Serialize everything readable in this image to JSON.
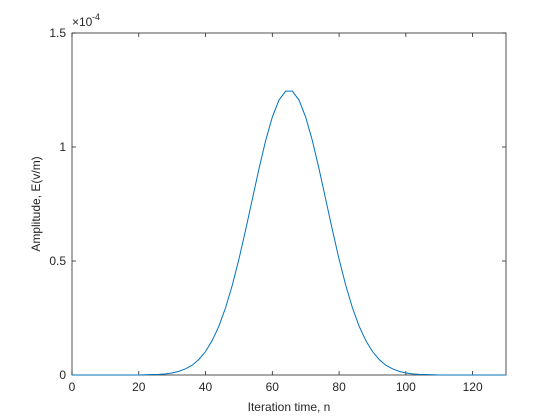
{
  "chart_data": {
    "type": "line",
    "x_label": "Iteration time, n",
    "y_label": "Amplitude, E(v/m)",
    "y_multiplier": "×10",
    "y_exponent": "-4",
    "x": [
      0,
      2,
      4,
      6,
      8,
      10,
      12,
      14,
      16,
      18,
      20,
      22,
      24,
      26,
      28,
      30,
      32,
      34,
      36,
      38,
      40,
      42,
      44,
      46,
      48,
      50,
      52,
      54,
      56,
      58,
      60,
      62,
      64,
      66,
      68,
      70,
      72,
      74,
      76,
      78,
      80,
      82,
      84,
      86,
      88,
      90,
      92,
      94,
      96,
      98,
      100,
      102,
      104,
      106,
      108,
      110,
      112,
      114,
      116,
      118,
      120,
      122,
      124,
      126,
      128,
      130
    ],
    "series": [
      {
        "color": "#0072bd",
        "values": [
          0,
          0,
          0,
          0,
          0,
          0,
          0,
          0,
          0,
          0,
          0,
          0.001,
          0.002,
          0.003,
          0.005,
          0.009,
          0.016,
          0.027,
          0.043,
          0.068,
          0.103,
          0.151,
          0.214,
          0.295,
          0.393,
          0.508,
          0.636,
          0.77,
          0.904,
          1.028,
          1.131,
          1.206,
          1.245,
          1.245,
          1.206,
          1.131,
          1.028,
          0.904,
          0.77,
          0.636,
          0.508,
          0.393,
          0.295,
          0.214,
          0.151,
          0.103,
          0.068,
          0.043,
          0.027,
          0.016,
          0.009,
          0.005,
          0.003,
          0.002,
          0.001,
          0,
          0,
          0,
          0,
          0,
          0,
          0,
          0,
          0,
          0,
          0
        ]
      }
    ],
    "xlim": [
      0,
      130
    ],
    "xticks": [
      0,
      20,
      40,
      60,
      80,
      100,
      120
    ],
    "ylim": [
      0,
      1.5
    ],
    "yticks": [
      0,
      0.5,
      1,
      1.5
    ]
  }
}
